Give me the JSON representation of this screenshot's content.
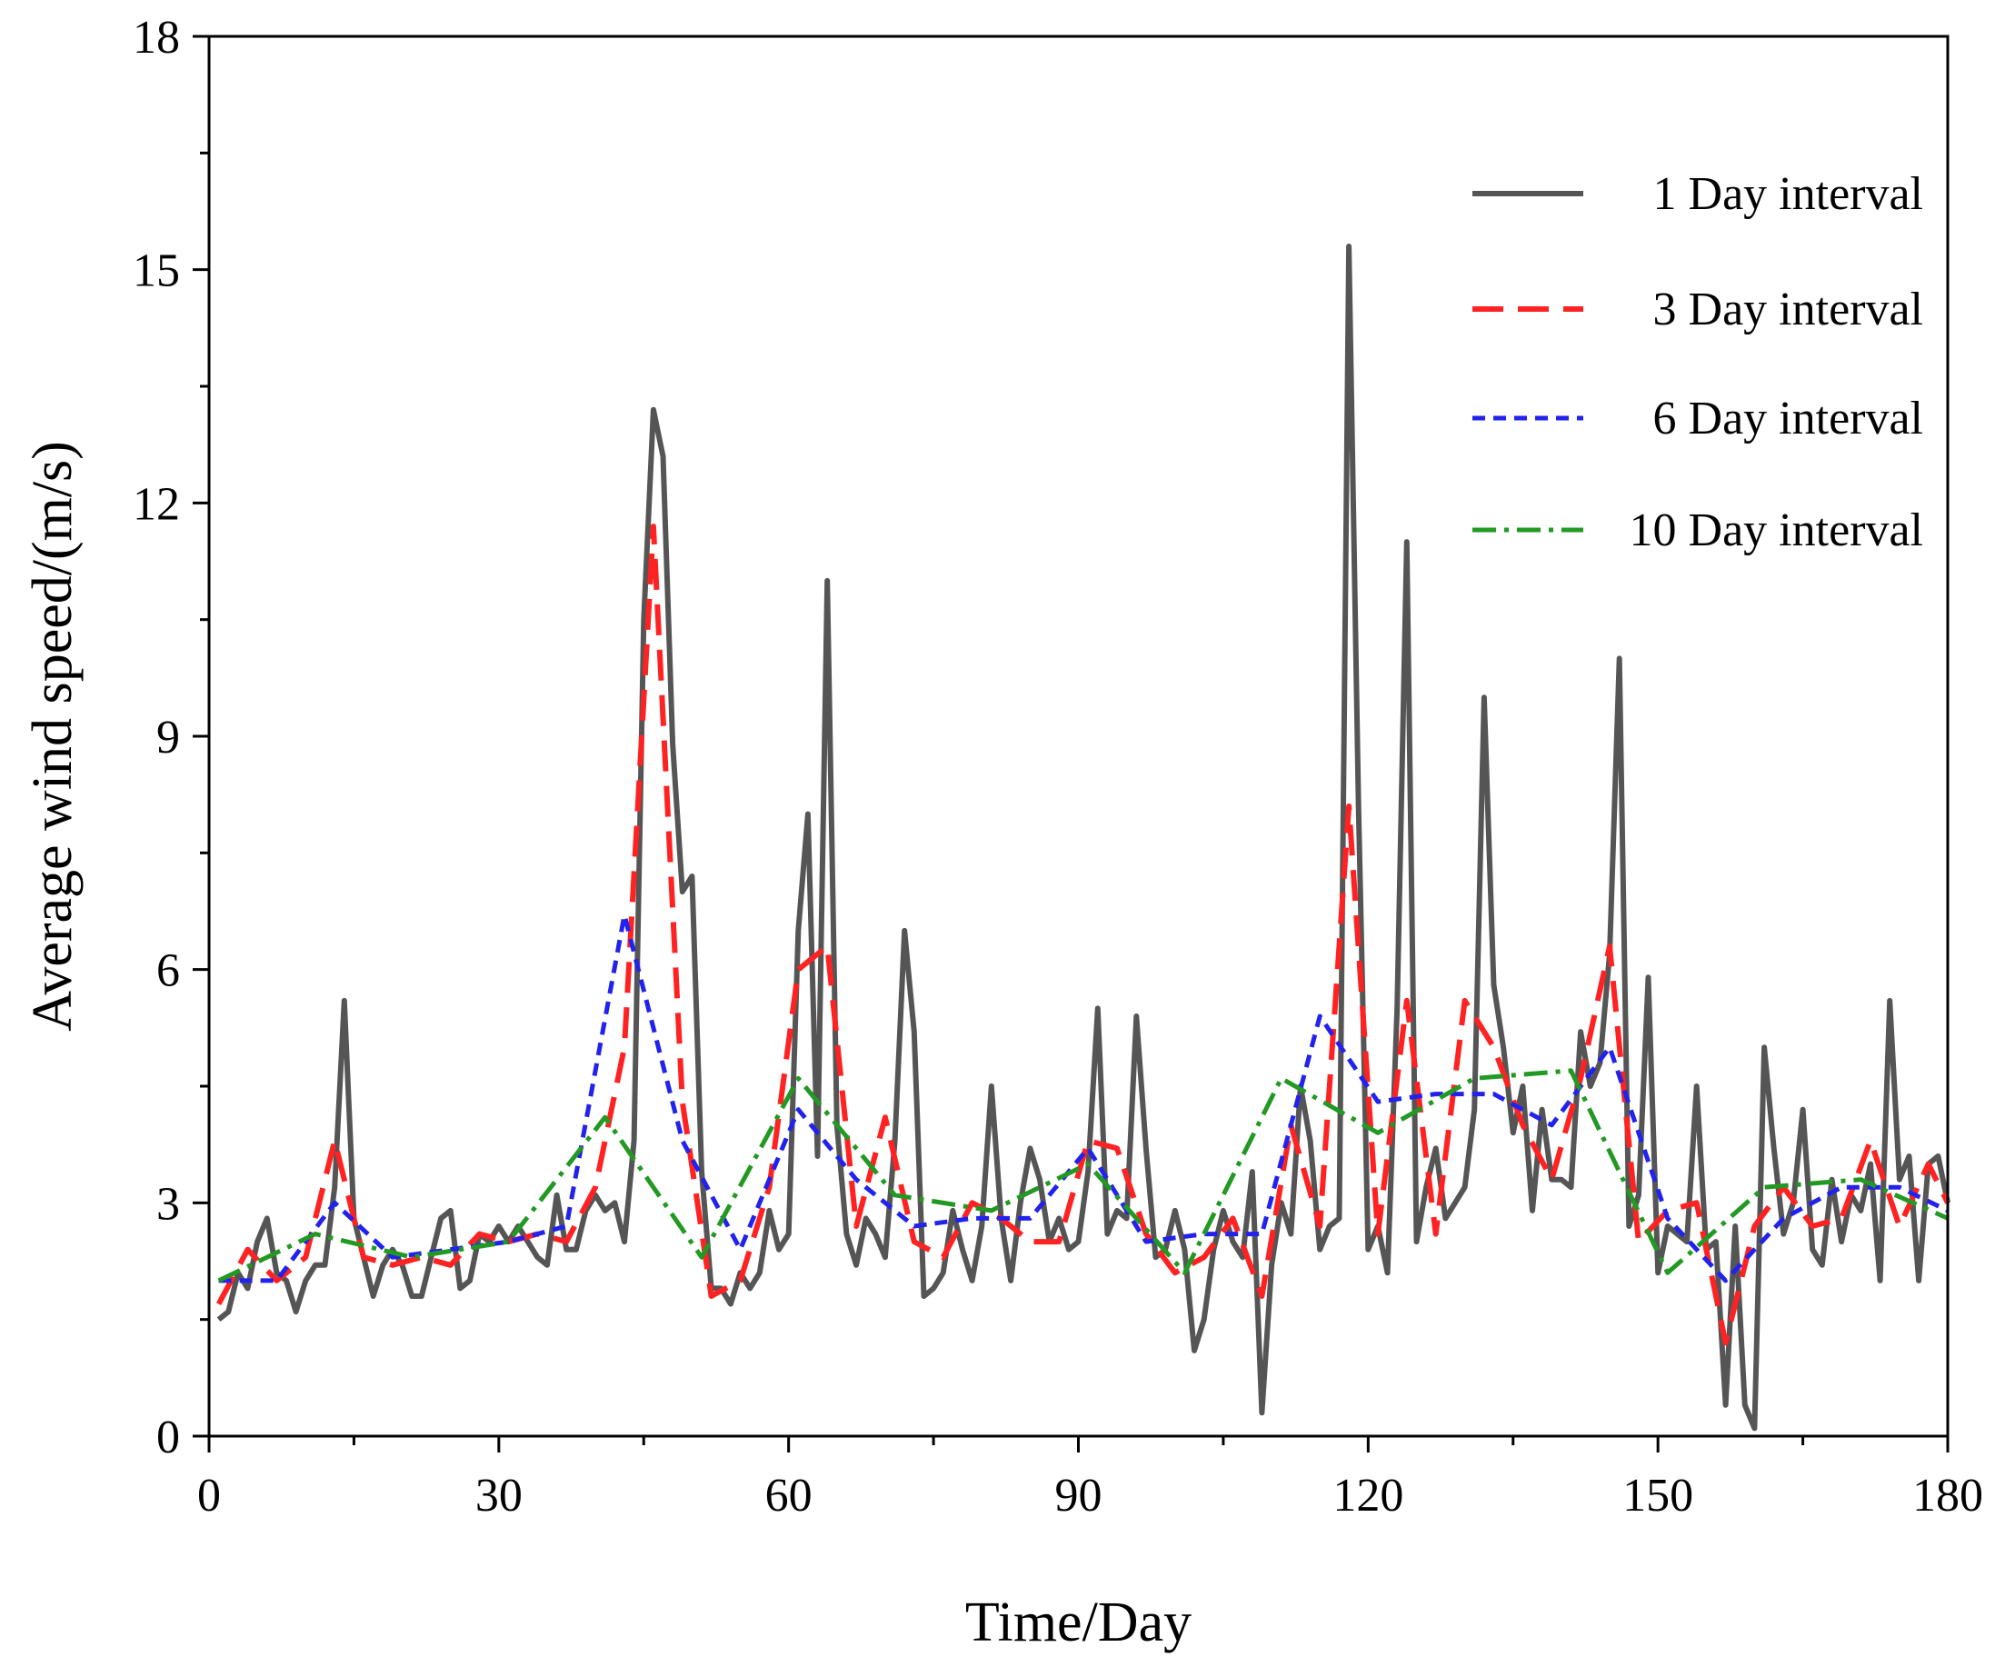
{
  "chart_data": {
    "type": "line",
    "title": "",
    "xlabel": "Time/Day",
    "ylabel": "Average wind speed/(m/s)",
    "xlim": [
      0,
      180
    ],
    "ylim": [
      0,
      18
    ],
    "xticks": [
      0,
      30,
      60,
      90,
      120,
      150,
      180
    ],
    "yticks": [
      0,
      3,
      6,
      9,
      12,
      15,
      18
    ],
    "xtick_labels": [
      "0",
      "30",
      "60",
      "90",
      "120",
      "150",
      "180"
    ],
    "ytick_labels": [
      "0",
      "3",
      "6",
      "9",
      "12",
      "15",
      "18"
    ],
    "grid": false,
    "legend_position": "top-right",
    "series": [
      {
        "name": "1 Day interval",
        "color": "#555555",
        "dash": "solid",
        "x": [
          1,
          2,
          3,
          4,
          5,
          6,
          7,
          8,
          9,
          10,
          11,
          12,
          13,
          14,
          15,
          16,
          17,
          18,
          19,
          20,
          21,
          22,
          23,
          24,
          25,
          26,
          27,
          28,
          29,
          30,
          31,
          32,
          33,
          34,
          35,
          36,
          37,
          38,
          39,
          40,
          41,
          42,
          43,
          44,
          45,
          46,
          47,
          48,
          49,
          50,
          51,
          52,
          53,
          54,
          55,
          56,
          57,
          58,
          59,
          60,
          61,
          62,
          63,
          64,
          65,
          66,
          67,
          68,
          69,
          70,
          71,
          72,
          73,
          74,
          75,
          76,
          77,
          78,
          79,
          80,
          81,
          82,
          83,
          84,
          85,
          86,
          87,
          88,
          89,
          90,
          91,
          92,
          93,
          94,
          95,
          96,
          97,
          98,
          99,
          100,
          101,
          102,
          103,
          104,
          105,
          106,
          107,
          108,
          109,
          110,
          111,
          112,
          113,
          114,
          115,
          116,
          117,
          118,
          119,
          120,
          121,
          122,
          123,
          124,
          125,
          126,
          127,
          128,
          129,
          130,
          131,
          132,
          133,
          134,
          135,
          136,
          137,
          138,
          139,
          140,
          141,
          142,
          143,
          144,
          145,
          146,
          147,
          148,
          149,
          150,
          151,
          152,
          153,
          154,
          155,
          156,
          157,
          158,
          159,
          160,
          161,
          162,
          163,
          164,
          165,
          166,
          167,
          168,
          169,
          170,
          171,
          172,
          173,
          174,
          175,
          176,
          177,
          178,
          179,
          180
        ],
        "values": [
          1.5,
          1.6,
          2.1,
          1.9,
          2.5,
          2.8,
          2.1,
          2.0,
          1.6,
          2.0,
          2.2,
          2.2,
          3.2,
          5.6,
          2.8,
          2.3,
          1.8,
          2.2,
          2.4,
          2.2,
          1.8,
          1.8,
          2.3,
          2.8,
          2.9,
          1.9,
          2.0,
          2.6,
          2.5,
          2.7,
          2.5,
          2.7,
          2.5,
          2.3,
          2.2,
          3.1,
          2.4,
          2.4,
          2.9,
          3.1,
          2.9,
          3.0,
          2.5,
          3.8,
          10.5,
          13.2,
          12.6,
          8.9,
          7.0,
          7.2,
          3.4,
          1.9,
          1.9,
          1.7,
          2.1,
          1.9,
          2.1,
          2.9,
          2.4,
          2.6,
          6.5,
          8.0,
          3.6,
          11.0,
          4.0,
          2.6,
          2.2,
          2.8,
          2.6,
          2.3,
          3.8,
          6.5,
          5.2,
          1.8,
          1.9,
          2.1,
          2.9,
          2.4,
          2.0,
          2.7,
          4.5,
          2.8,
          2.0,
          3.0,
          3.7,
          3.3,
          2.5,
          2.8,
          2.4,
          2.5,
          3.4,
          5.5,
          2.6,
          2.9,
          2.8,
          5.4,
          3.7,
          2.3,
          2.4,
          2.9,
          2.4,
          1.1,
          1.5,
          2.4,
          2.9,
          2.5,
          2.3,
          3.4,
          0.3,
          2.2,
          3.0,
          2.6,
          4.5,
          3.8,
          2.4,
          2.7,
          2.8,
          15.3,
          8.1,
          2.4,
          2.7,
          2.1,
          5.5,
          11.5,
          2.5,
          3.2,
          3.7,
          2.8,
          3.0,
          3.2,
          4.2,
          9.5,
          5.8,
          5.0,
          3.9,
          4.5,
          2.9,
          4.2,
          3.3,
          3.3,
          3.2,
          5.2,
          4.5,
          4.8,
          6.2,
          10.0,
          2.7,
          3.1,
          5.9,
          2.1,
          2.7,
          2.6,
          2.5,
          4.5,
          2.4,
          2.5,
          0.4,
          2.7,
          0.4,
          0.1,
          5.0,
          3.7,
          2.6,
          3.0,
          4.2,
          2.4,
          2.2,
          3.3,
          2.5,
          3.1,
          2.9,
          3.5,
          2.0,
          5.6,
          3.3,
          3.6,
          2.0,
          3.5,
          3.6,
          3.0
        ]
      },
      {
        "name": "3 Day interval",
        "color": "#ff2222",
        "dash": "long-dash",
        "x": [
          1,
          4,
          7,
          10,
          13,
          16,
          19,
          22,
          25,
          28,
          31,
          34,
          37,
          40,
          43,
          46,
          49,
          52,
          55,
          58,
          61,
          64,
          67,
          70,
          73,
          76,
          79,
          82,
          85,
          88,
          91,
          94,
          97,
          100,
          103,
          106,
          109,
          112,
          115,
          118,
          121,
          124,
          127,
          130,
          133,
          136,
          139,
          142,
          145,
          148,
          151,
          154,
          157,
          160,
          163,
          166,
          169,
          172,
          175,
          178,
          180
        ],
        "values": [
          1.7,
          2.4,
          2.0,
          2.3,
          3.8,
          2.3,
          2.2,
          2.3,
          2.2,
          2.6,
          2.5,
          2.6,
          2.5,
          3.2,
          5.0,
          11.7,
          4.3,
          1.8,
          2.0,
          3.2,
          6.0,
          6.3,
          2.7,
          4.1,
          2.5,
          2.3,
          3.0,
          2.8,
          2.5,
          2.5,
          3.8,
          3.7,
          2.6,
          2.1,
          2.3,
          2.8,
          1.8,
          4.0,
          2.7,
          8.1,
          2.6,
          5.6,
          2.6,
          5.6,
          5.0,
          4.0,
          3.3,
          4.6,
          6.3,
          2.5,
          2.9,
          3.0,
          1.2,
          2.7,
          3.2,
          2.7,
          2.8,
          3.8,
          2.7,
          3.5,
          3.0
        ]
      },
      {
        "name": "6 Day interval",
        "color": "#2222ee",
        "dash": "short-dash",
        "x": [
          1,
          7,
          13,
          19,
          25,
          31,
          37,
          43,
          49,
          55,
          61,
          67,
          73,
          79,
          85,
          91,
          97,
          103,
          109,
          115,
          121,
          127,
          133,
          139,
          145,
          151,
          157,
          163,
          169,
          175,
          180
        ],
        "values": [
          2.0,
          2.0,
          3.0,
          2.3,
          2.4,
          2.5,
          2.7,
          6.7,
          3.8,
          2.4,
          4.2,
          3.3,
          2.7,
          2.8,
          2.8,
          3.7,
          2.5,
          2.6,
          2.6,
          5.4,
          4.3,
          4.4,
          4.4,
          4.0,
          5.0,
          2.8,
          2.0,
          2.8,
          3.2,
          3.2,
          2.9
        ]
      },
      {
        "name": "10 Day interval",
        "color": "#229922",
        "dash": "dash-dot",
        "x": [
          1,
          11,
          21,
          31,
          41,
          51,
          61,
          71,
          81,
          91,
          101,
          111,
          121,
          131,
          141,
          151,
          161,
          171,
          180
        ],
        "values": [
          2.0,
          2.6,
          2.3,
          2.5,
          4.1,
          2.3,
          4.6,
          3.1,
          2.9,
          3.5,
          2.1,
          4.6,
          3.9,
          4.6,
          4.7,
          2.1,
          3.2,
          3.3,
          2.8
        ]
      }
    ]
  }
}
